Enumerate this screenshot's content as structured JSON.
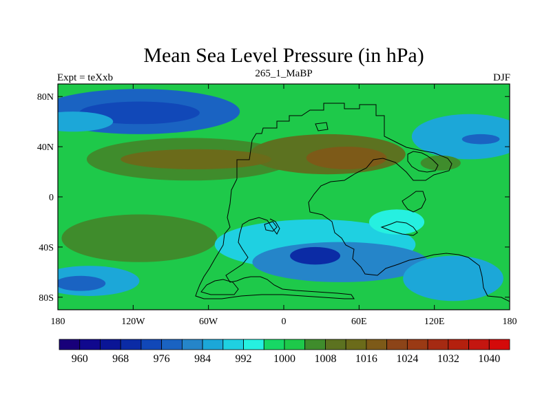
{
  "chart_data": {
    "type": "heatmap",
    "title": "Mean Sea Level Pressure (in hPa)",
    "left_label": "Expt = teXxb",
    "center_label": "265_1_MaBP",
    "right_label": "DJF",
    "x_ticks": [
      "180",
      "120W",
      "60W",
      "0",
      "60E",
      "120E",
      "180"
    ],
    "x_tick_values": [
      -180,
      -120,
      -60,
      0,
      60,
      120,
      180
    ],
    "y_ticks": [
      "80N",
      "40N",
      "0",
      "40S",
      "80S"
    ],
    "y_tick_values": [
      80,
      40,
      0,
      -40,
      -80
    ],
    "xlim": [
      -180,
      180
    ],
    "ylim": [
      -90,
      90
    ],
    "colorbar": {
      "levels": [
        956,
        960,
        964,
        968,
        972,
        976,
        980,
        984,
        988,
        992,
        996,
        1000,
        1004,
        1008,
        1012,
        1016,
        1020,
        1024,
        1028,
        1032,
        1036,
        1040,
        1044
      ],
      "labels": [
        "960",
        "968",
        "976",
        "984",
        "992",
        "1000",
        "1008",
        "1016",
        "1024",
        "1032",
        "1040"
      ],
      "label_values": [
        960,
        968,
        976,
        984,
        992,
        1000,
        1008,
        1016,
        1024,
        1032,
        1040
      ],
      "colors": [
        "#18007a",
        "#10088e",
        "#0a1596",
        "#0b2ba5",
        "#1148b8",
        "#1a63c2",
        "#2585c9",
        "#1ca7d8",
        "#1fd0e1",
        "#26f0e0",
        "#17d765",
        "#1ec94a",
        "#3f8c2c",
        "#5c7220",
        "#6b6b1a",
        "#7d5a18",
        "#8c4418",
        "#9a3a14",
        "#a52a12",
        "#b4200e",
        "#c41610",
        "#d40a0a"
      ]
    },
    "background_value": 1000,
    "pressure_features": [
      {
        "label": "North Pacific low",
        "lon": -115,
        "lat": 68,
        "rx": 80,
        "ry": 18,
        "value": 978
      },
      {
        "label": "North Pacific low core",
        "lon": -115,
        "lat": 67,
        "rx": 48,
        "ry": 9,
        "value": 972
      },
      {
        "label": "Northwest Pacific trough",
        "lon": -168,
        "lat": 60,
        "rx": 32,
        "ry": 8,
        "value": 985
      },
      {
        "label": "Northeast Atlantic low",
        "lon": 148,
        "lat": 48,
        "rx": 46,
        "ry": 18,
        "value": 986
      },
      {
        "label": "Northeast Atlantic low core",
        "lon": 157,
        "lat": 46,
        "rx": 15,
        "ry": 4,
        "value": 978
      },
      {
        "label": "Northern subtropical high belt",
        "lon": -75,
        "lat": 30,
        "rx": 82,
        "ry": 17,
        "value": 1006
      },
      {
        "label": "Northern subtropical high belt east",
        "lon": 35,
        "lat": 34,
        "rx": 62,
        "ry": 16,
        "value": 1008
      },
      {
        "label": "Northern high core west",
        "lon": -70,
        "lat": 30,
        "rx": 60,
        "ry": 8,
        "value": 1014
      },
      {
        "label": "Northern high core east",
        "lon": 50,
        "lat": 31,
        "rx": 32,
        "ry": 9,
        "value": 1016
      },
      {
        "label": "Eastern tropical high",
        "lon": 125,
        "lat": 27,
        "rx": 16,
        "ry": 6,
        "value": 1006
      },
      {
        "label": "Southern subtropical high",
        "lon": -115,
        "lat": -33,
        "rx": 62,
        "ry": 19,
        "value": 1006
      },
      {
        "label": "Southern tropical low belt",
        "lon": 25,
        "lat": -38,
        "rx": 80,
        "ry": 20,
        "value": 989
      },
      {
        "label": "Southern hemisphere low",
        "lon": 45,
        "lat": -52,
        "rx": 70,
        "ry": 16,
        "value": 982
      },
      {
        "label": "Southern hemisphere low core",
        "lon": 25,
        "lat": -47,
        "rx": 20,
        "ry": 7,
        "value": 970
      },
      {
        "label": "Southwest Pacific low",
        "lon": -155,
        "lat": -67,
        "rx": 40,
        "ry": 12,
        "value": 984
      },
      {
        "label": "Southwest Pacific low core",
        "lon": -162,
        "lat": -69,
        "rx": 20,
        "ry": 6,
        "value": 978
      },
      {
        "label": "Southeastern trough",
        "lon": 135,
        "lat": -65,
        "rx": 40,
        "ry": 18,
        "value": 986
      },
      {
        "label": "Tropical Indian low",
        "lon": 90,
        "lat": -20,
        "rx": 22,
        "ry": 10,
        "value": 992
      }
    ]
  }
}
